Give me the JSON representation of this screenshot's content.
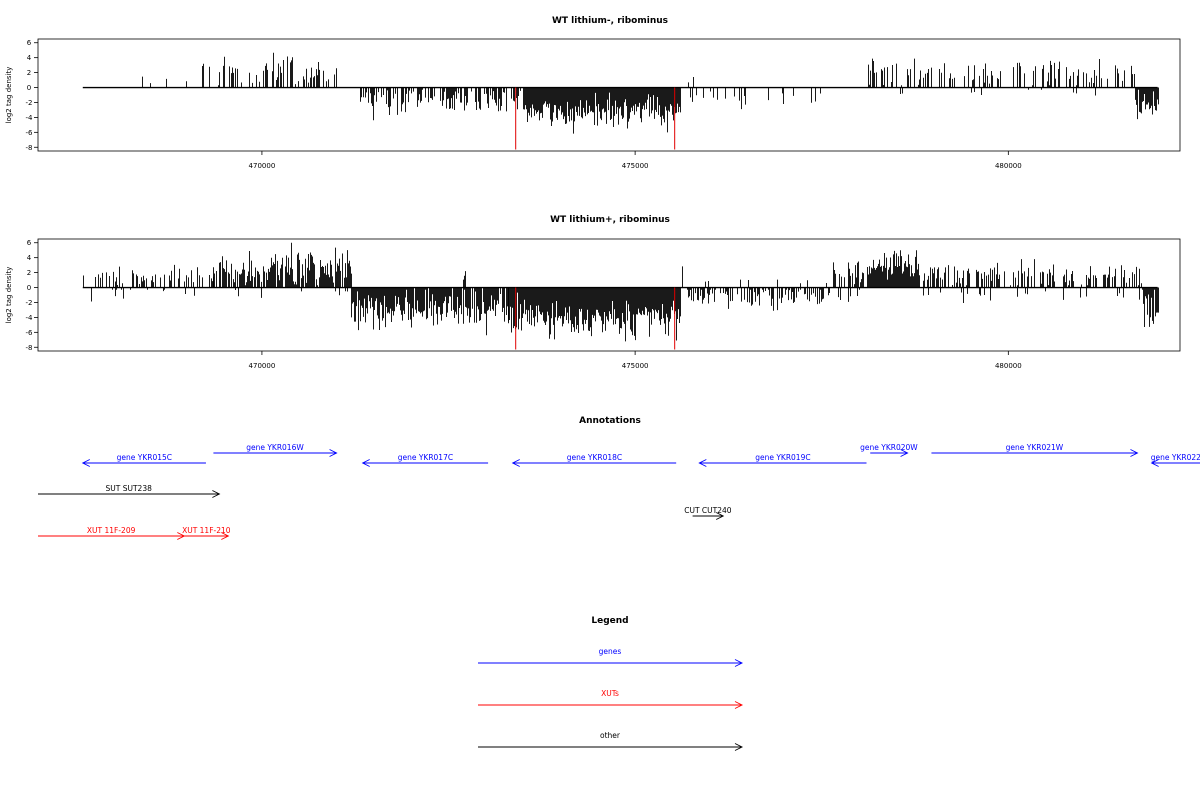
{
  "chart_data": [
    {
      "type": "bar",
      "title": "WT lithium-, ribominus",
      "ylabel": "log2 tag density",
      "xlabel": "",
      "xlim": [
        467000,
        482300
      ],
      "ylim": [
        -8.5,
        6.5
      ],
      "xticks": [
        470000,
        475000,
        480000
      ],
      "xtick_labels": [
        "470000",
        "475000",
        "480000"
      ],
      "yticks": [
        6,
        4,
        2,
        0,
        -2,
        -4,
        -6,
        -8
      ],
      "ytick_labels": [
        "6",
        "4",
        "2",
        "0",
        "-2",
        "-4",
        "-6",
        "-8"
      ],
      "grid": false,
      "legend": "none",
      "baseline": [
        467600,
        482000
      ],
      "marker_lines": {
        "positions": [
          473400,
          475530
        ],
        "value": -8.3,
        "color": "#e00000"
      },
      "segments": [
        {
          "start": 467600,
          "end": 469050,
          "sign": 1,
          "density": 0.05,
          "mean": 1.0,
          "sd": 0.8,
          "max": 3.0
        },
        {
          "start": 468750,
          "end": 468800,
          "sign": -1,
          "density": 0.05,
          "mean": 2.0,
          "sd": 0.2,
          "max": 2.2
        },
        {
          "start": 469200,
          "end": 471050,
          "sign": 1,
          "density": 0.35,
          "mean": 2.2,
          "sd": 1.1,
          "max": 5.0
        },
        {
          "start": 471300,
          "end": 473500,
          "sign": -1,
          "density": 0.5,
          "mean": 2.0,
          "sd": 1.0,
          "max": 5.0
        },
        {
          "start": 473500,
          "end": 475600,
          "sign": -1,
          "density": 1.0,
          "mean": 3.2,
          "sd": 1.1,
          "max": 6.5
        },
        {
          "start": 475700,
          "end": 477500,
          "sign": -1,
          "density": 0.2,
          "mean": 1.6,
          "sd": 0.8,
          "max": 3.5
        },
        {
          "start": 475700,
          "end": 475800,
          "sign": 1,
          "density": 0.3,
          "mean": 1.5,
          "sd": 0.6,
          "max": 2.0
        },
        {
          "start": 478100,
          "end": 481700,
          "sign": 1,
          "density": 0.3,
          "mean": 2.0,
          "sd": 1.0,
          "max": 4.2
        },
        {
          "start": 478100,
          "end": 481700,
          "sign": -1,
          "density": 0.03,
          "mean": 0.7,
          "sd": 0.3,
          "max": 1.2
        },
        {
          "start": 481700,
          "end": 482000,
          "sign": -1,
          "density": 1.0,
          "mean": 2.5,
          "sd": 1.0,
          "max": 4.6
        }
      ]
    },
    {
      "type": "bar",
      "title": "WT lithium+, ribominus",
      "ylabel": "log2 tag density",
      "xlabel": "",
      "xlim": [
        467000,
        482300
      ],
      "ylim": [
        -8.5,
        6.5
      ],
      "xticks": [
        470000,
        475000,
        480000
      ],
      "xtick_labels": [
        "470000",
        "475000",
        "480000"
      ],
      "yticks": [
        6,
        4,
        2,
        0,
        -2,
        -4,
        -6,
        -8
      ],
      "ytick_labels": [
        "6",
        "4",
        "2",
        "0",
        "-2",
        "-4",
        "-6",
        "-8"
      ],
      "grid": false,
      "legend": "none",
      "baseline": [
        467600,
        482000
      ],
      "marker_lines": {
        "positions": [
          473400,
          475530
        ],
        "value": -8.3,
        "color": "#e00000"
      },
      "segments": [
        {
          "start": 467600,
          "end": 469350,
          "sign": 1,
          "density": 0.35,
          "mean": 1.5,
          "sd": 0.8,
          "max": 3.5
        },
        {
          "start": 467600,
          "end": 469350,
          "sign": -1,
          "density": 0.05,
          "mean": 0.8,
          "sd": 0.5,
          "max": 2.0
        },
        {
          "start": 469350,
          "end": 471200,
          "sign": 1,
          "density": 0.8,
          "mean": 2.6,
          "sd": 1.2,
          "max": 6.0
        },
        {
          "start": 469350,
          "end": 471200,
          "sign": -1,
          "density": 0.06,
          "mean": 1.0,
          "sd": 0.5,
          "max": 2.5
        },
        {
          "start": 471200,
          "end": 473300,
          "sign": -1,
          "density": 0.9,
          "mean": 3.0,
          "sd": 1.2,
          "max": 8.0
        },
        {
          "start": 472700,
          "end": 472750,
          "sign": 1,
          "density": 0.3,
          "mean": 1.8,
          "sd": 0.4,
          "max": 2.2
        },
        {
          "start": 473300,
          "end": 475600,
          "sign": -1,
          "density": 1.0,
          "mean": 4.0,
          "sd": 1.2,
          "max": 8.3
        },
        {
          "start": 475600,
          "end": 475700,
          "sign": 1,
          "density": 0.3,
          "mean": 2.5,
          "sd": 0.6,
          "max": 3.4
        },
        {
          "start": 475700,
          "end": 477600,
          "sign": -1,
          "density": 0.5,
          "mean": 1.3,
          "sd": 0.8,
          "max": 3.5
        },
        {
          "start": 475700,
          "end": 477600,
          "sign": 1,
          "density": 0.05,
          "mean": 0.8,
          "sd": 0.4,
          "max": 1.5
        },
        {
          "start": 477600,
          "end": 478100,
          "sign": 1,
          "density": 0.5,
          "mean": 1.8,
          "sd": 1.0,
          "max": 3.7
        },
        {
          "start": 477600,
          "end": 478100,
          "sign": -1,
          "density": 0.2,
          "mean": 1.0,
          "sd": 0.6,
          "max": 2.5
        },
        {
          "start": 478100,
          "end": 478800,
          "sign": 1,
          "density": 1.0,
          "mean": 3.0,
          "sd": 1.0,
          "max": 5.0
        },
        {
          "start": 478800,
          "end": 481800,
          "sign": 1,
          "density": 0.5,
          "mean": 1.8,
          "sd": 0.9,
          "max": 3.8
        },
        {
          "start": 478800,
          "end": 481800,
          "sign": -1,
          "density": 0.08,
          "mean": 0.9,
          "sd": 0.5,
          "max": 2.2
        },
        {
          "start": 481800,
          "end": 482000,
          "sign": -1,
          "density": 1.0,
          "mean": 3.0,
          "sd": 1.3,
          "max": 6.5
        }
      ]
    }
  ],
  "annotations": {
    "title": "Annotations",
    "xlim": [
      467000,
      482300
    ],
    "features": [
      {
        "label": "gene YKR015C",
        "start": 467600,
        "end": 469250,
        "strand": "-",
        "row": 2,
        "type": "gene"
      },
      {
        "label": "gene YKR016W",
        "start": 469350,
        "end": 471000,
        "strand": "+",
        "row": 1,
        "type": "gene"
      },
      {
        "label": "gene YKR017C",
        "start": 471350,
        "end": 473030,
        "strand": "-",
        "row": 2,
        "type": "gene"
      },
      {
        "label": "gene YKR018C",
        "start": 473360,
        "end": 475550,
        "strand": "-",
        "row": 2,
        "type": "gene"
      },
      {
        "label": "gene YKR019C",
        "start": 475860,
        "end": 478100,
        "strand": "-",
        "row": 2,
        "type": "gene"
      },
      {
        "label": "gene YKR020W",
        "start": 478150,
        "end": 478650,
        "strand": "+",
        "row": 1,
        "type": "gene"
      },
      {
        "label": "gene YKR021W",
        "start": 478970,
        "end": 481730,
        "strand": "+",
        "row": 1,
        "type": "gene"
      },
      {
        "label": "gene YKR022",
        "start": 481920,
        "end": 482900,
        "strand": "-",
        "row": 2,
        "type": "gene"
      },
      {
        "label": "SUT SUT238",
        "start": 467000,
        "end": 469430,
        "strand": "+",
        "row": 3,
        "type": "other"
      },
      {
        "label": "CUT CUT240",
        "start": 475770,
        "end": 476180,
        "strand": "+",
        "row": 4,
        "type": "other"
      },
      {
        "label": "XUT 11F-209",
        "start": 467000,
        "end": 468960,
        "strand": "+",
        "row": 5,
        "type": "xut"
      },
      {
        "label": "XUT 11F-210",
        "start": 468960,
        "end": 469550,
        "strand": "+",
        "row": 5,
        "type": "xut"
      }
    ]
  },
  "legend": {
    "title": "Legend",
    "items": [
      {
        "label": "genes",
        "type": "gene"
      },
      {
        "label": "XUTs",
        "type": "xut"
      },
      {
        "label": "other",
        "type": "other"
      }
    ]
  },
  "colors": {
    "gene": "#0000ff",
    "xut": "#ff0000",
    "other": "#000000",
    "bars": "#000000"
  }
}
